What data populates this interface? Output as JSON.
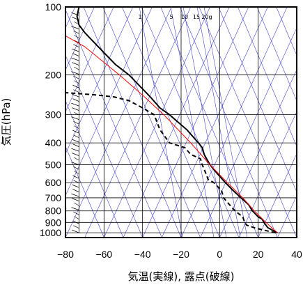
{
  "chart_data": {
    "type": "line",
    "chart_kind": "skew-T log-P diagram",
    "xlabel": "気温(実線), 露点(破線)",
    "ylabel": "気圧(hPa)",
    "x_unit": "°C",
    "y_unit": "hPa",
    "y_scale": "log",
    "y_reversed": true,
    "xlim": [
      -80,
      40
    ],
    "ylim": [
      1050,
      100
    ],
    "x_ticks": [
      -80,
      -60,
      -40,
      -20,
      0,
      20,
      40
    ],
    "y_ticks": [
      100,
      200,
      300,
      400,
      500,
      600,
      700,
      800,
      900,
      1000
    ],
    "grid": true,
    "mixing_ratio_labels": [
      "1",
      "5",
      "10",
      "15",
      "20g"
    ],
    "colors": {
      "temperature": "#000000",
      "dewpoint": "#000000",
      "parcel": "#ff0000",
      "guide_lines": "#4444cc",
      "grid": "#000000"
    },
    "series": [
      {
        "name": "気温",
        "style": "solid",
        "points": [
          {
            "p": 1000,
            "t": 30
          },
          {
            "p": 970,
            "t": 27
          },
          {
            "p": 950,
            "t": 25
          },
          {
            "p": 925,
            "t": 24
          },
          {
            "p": 900,
            "t": 23
          },
          {
            "p": 870,
            "t": 22
          },
          {
            "p": 850,
            "t": 20
          },
          {
            "p": 800,
            "t": 17
          },
          {
            "p": 750,
            "t": 15
          },
          {
            "p": 700,
            "t": 11
          },
          {
            "p": 650,
            "t": 7
          },
          {
            "p": 600,
            "t": 3
          },
          {
            "p": 550,
            "t": -1
          },
          {
            "p": 500,
            "t": -5
          },
          {
            "p": 450,
            "t": -8
          },
          {
            "p": 420,
            "t": -9
          },
          {
            "p": 400,
            "t": -11
          },
          {
            "p": 350,
            "t": -17
          },
          {
            "p": 300,
            "t": -26
          },
          {
            "p": 280,
            "t": -31
          },
          {
            "p": 250,
            "t": -36
          },
          {
            "p": 200,
            "t": -47
          },
          {
            "p": 180,
            "t": -54
          },
          {
            "p": 150,
            "t": -63
          },
          {
            "p": 130,
            "t": -70
          },
          {
            "p": 120,
            "t": -73
          },
          {
            "p": 110,
            "t": -74
          },
          {
            "p": 100,
            "t": -73
          }
        ]
      },
      {
        "name": "露点",
        "style": "dashed",
        "points": [
          {
            "p": 1000,
            "t": 29
          },
          {
            "p": 970,
            "t": 22
          },
          {
            "p": 950,
            "t": 18
          },
          {
            "p": 925,
            "t": 14
          },
          {
            "p": 900,
            "t": 13
          },
          {
            "p": 850,
            "t": 12
          },
          {
            "p": 800,
            "t": 8
          },
          {
            "p": 750,
            "t": 5
          },
          {
            "p": 700,
            "t": 2
          },
          {
            "p": 650,
            "t": 1
          },
          {
            "p": 600,
            "t": -3
          },
          {
            "p": 580,
            "t": -6
          },
          {
            "p": 550,
            "t": -7
          },
          {
            "p": 500,
            "t": -9
          },
          {
            "p": 470,
            "t": -10
          },
          {
            "p": 450,
            "t": -15
          },
          {
            "p": 420,
            "t": -18
          },
          {
            "p": 400,
            "t": -26
          },
          {
            "p": 350,
            "t": -31
          },
          {
            "p": 300,
            "t": -34
          },
          {
            "p": 280,
            "t": -40
          },
          {
            "p": 260,
            "t": -47
          },
          {
            "p": 250,
            "t": -55
          },
          {
            "p": 245,
            "t": -65
          },
          {
            "p": 240,
            "t": -79
          },
          {
            "p": 237,
            "t": -100
          }
        ]
      },
      {
        "name": "",
        "style": "solid-red",
        "points": [
          {
            "p": 1000,
            "t": 30
          },
          {
            "p": 900,
            "t": 24
          },
          {
            "p": 800,
            "t": 18
          },
          {
            "p": 700,
            "t": 12
          },
          {
            "p": 600,
            "t": 4
          },
          {
            "p": 500,
            "t": -5
          },
          {
            "p": 400,
            "t": -15
          },
          {
            "p": 300,
            "t": -29
          },
          {
            "p": 250,
            "t": -39
          },
          {
            "p": 200,
            "t": -52
          },
          {
            "p": 150,
            "t": -70
          },
          {
            "p": 120,
            "t": -90
          }
        ]
      }
    ]
  }
}
